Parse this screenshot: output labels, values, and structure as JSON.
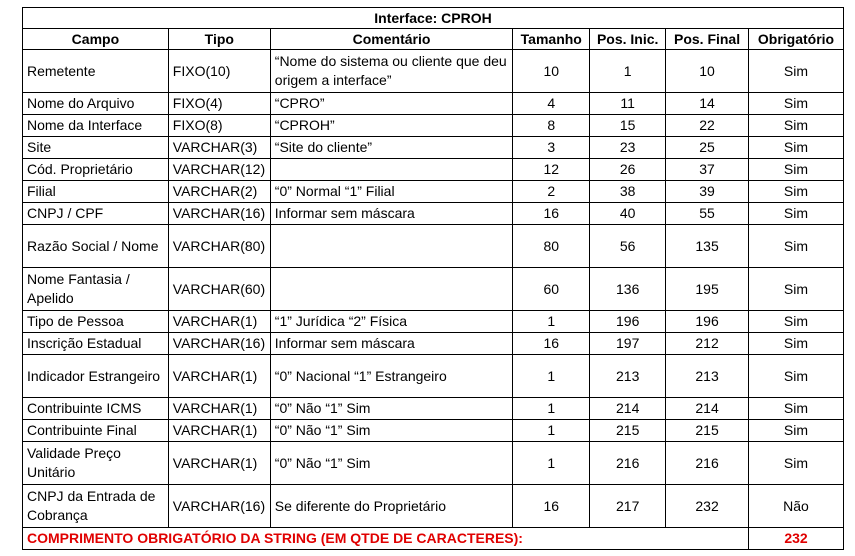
{
  "title": "Interface: CPROH",
  "headers": [
    "Campo",
    "Tipo",
    "Comentário",
    "Tamanho",
    "Pos. Inic.",
    "Pos. Final",
    "Obrigatório"
  ],
  "rows": [
    [
      "Remetente",
      "FIXO(10)",
      "“Nome do sistema ou cliente que deu origem a interface”",
      "10",
      "1",
      "10",
      "Sim"
    ],
    [
      "Nome do Arquivo",
      "FIXO(4)",
      "“CPRO”",
      "4",
      "11",
      "14",
      "Sim"
    ],
    [
      "Nome da Interface",
      "FIXO(8)",
      "“CPROH”",
      "8",
      "15",
      "22",
      "Sim"
    ],
    [
      "Site",
      "VARCHAR(3)",
      "“Site do cliente”",
      "3",
      "23",
      "25",
      "Sim"
    ],
    [
      "Cód. Proprietário",
      "VARCHAR(12)",
      "",
      "12",
      "26",
      "37",
      "Sim"
    ],
    [
      "Filial",
      "VARCHAR(2)",
      "“0” Normal “1” Filial",
      "2",
      "38",
      "39",
      "Sim"
    ],
    [
      "CNPJ / CPF",
      "VARCHAR(16)",
      "Informar sem máscara",
      "16",
      "40",
      "55",
      "Sim"
    ],
    [
      "Razão Social / Nome",
      "VARCHAR(80)",
      "",
      "80",
      "56",
      "135",
      "Sim"
    ],
    [
      "Nome Fantasia / Apelido",
      "VARCHAR(60)",
      "",
      "60",
      "136",
      "195",
      "Sim"
    ],
    [
      "Tipo de Pessoa",
      "VARCHAR(1)",
      "“1” Jurídica “2” Física",
      "1",
      "196",
      "196",
      "Sim"
    ],
    [
      "Inscrição Estadual",
      "VARCHAR(16)",
      "Informar sem máscara",
      "16",
      "197",
      "212",
      "Sim"
    ],
    [
      "Indicador Estrangeiro",
      "VARCHAR(1)",
      "“0” Nacional “1” Estrangeiro",
      "1",
      "213",
      "213",
      "Sim"
    ],
    [
      "Contribuinte ICMS",
      "VARCHAR(1)",
      "“0” Não “1” Sim",
      "1",
      "214",
      "214",
      "Sim"
    ],
    [
      "Contribuinte Final",
      "VARCHAR(1)",
      "“0” Não “1” Sim",
      "1",
      "215",
      "215",
      "Sim"
    ],
    [
      "Validade Preço Unitário",
      "VARCHAR(1)",
      "“0” Não “1” Sim",
      "1",
      "216",
      "216",
      "Sim"
    ],
    [
      "CNPJ da Entrada de Cobrança",
      "VARCHAR(16)",
      "Se diferente do Proprietário",
      "16",
      "217",
      "232",
      "Não"
    ]
  ],
  "tall_rows": [
    0,
    7,
    8,
    11,
    14,
    15
  ],
  "footer": {
    "label": "COMPRIMENTO OBRIGATÓRIO DA STRING (EM QTDE DE CARACTERES):",
    "value": "232"
  },
  "colors": {
    "footer_text": "#e00000"
  }
}
